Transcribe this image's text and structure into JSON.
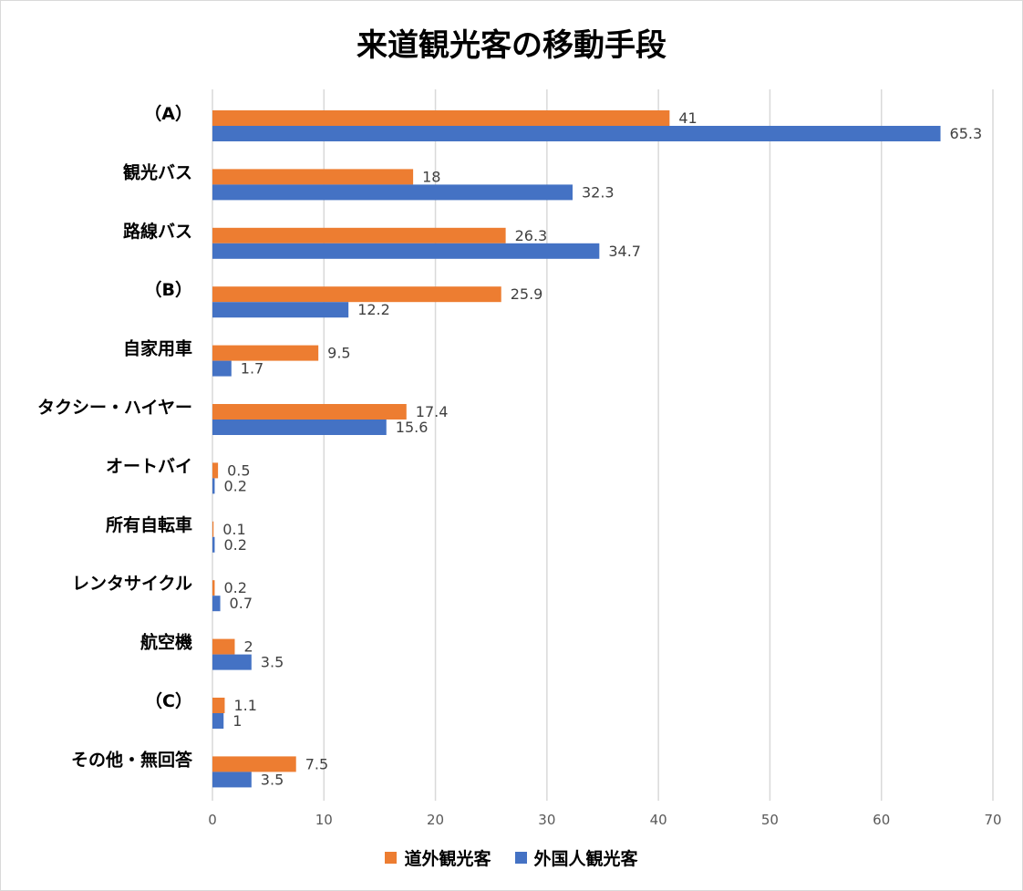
{
  "chart_data": {
    "type": "bar",
    "orientation": "horizontal",
    "title": "来道観光客の移動手段",
    "categories": [
      "（A）",
      "観光バス",
      "路線バス",
      "（B）",
      "自家用車",
      "タクシー・ハイヤー",
      "オートバイ",
      "所有自転車",
      "レンタサイクル",
      "航空機",
      "（C）",
      "その他・無回答"
    ],
    "series": [
      {
        "name": "道外観光客",
        "color": "#ED7D31",
        "values": [
          41,
          18,
          26.3,
          25.9,
          9.5,
          17.4,
          0.5,
          0.1,
          0.2,
          2,
          1.1,
          7.5
        ]
      },
      {
        "name": "外国人観光客",
        "color": "#4472C4",
        "values": [
          65.3,
          32.3,
          34.7,
          12.2,
          1.7,
          15.6,
          0.2,
          0.2,
          0.7,
          3.5,
          1,
          3.5
        ]
      }
    ],
    "xlim": [
      0,
      70
    ],
    "xticks": [
      0,
      10,
      20,
      30,
      40,
      50,
      60,
      70
    ],
    "grid": "vertical",
    "legend_position": "bottom",
    "data_labels": true
  }
}
